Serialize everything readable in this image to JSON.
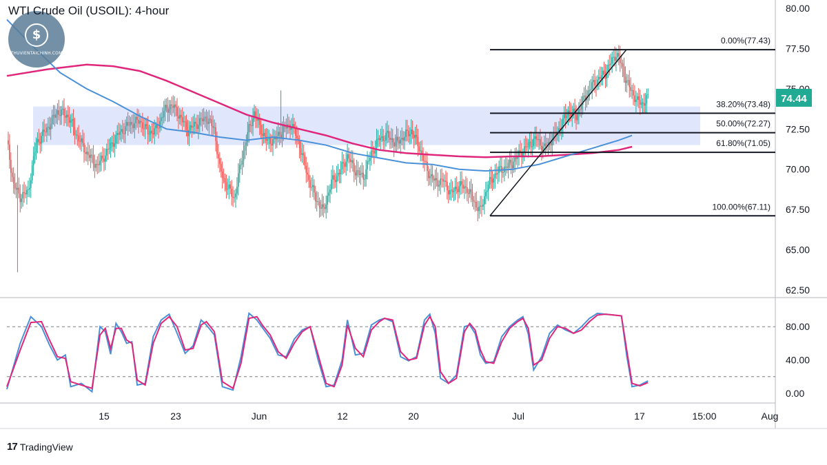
{
  "header": {
    "title": "WTI Crude Oil (USOIL): 4-hour"
  },
  "watermark": {
    "site": "THUVIENTAICHINH.COM",
    "symbol": "$"
  },
  "brand": {
    "mark": "17",
    "name": "TradingView"
  },
  "price_badge": {
    "value": "74.44",
    "color": "#22ab94"
  },
  "colors": {
    "ma_fast": "#4a90d9",
    "ma_slow": "#e0267a",
    "zone": "#dbe3fb",
    "up": "#26a69a",
    "down": "#ef5350",
    "fib": "#131722"
  },
  "chart_data": [
    {
      "type": "candlestick",
      "ylim": [
        62.5,
        80.0
      ],
      "y_ticks": [
        "62.50",
        "65.00",
        "67.50",
        "70.00",
        "72.50",
        "75.00",
        "77.50",
        "80.00"
      ],
      "x_ticks": [
        "15",
        "23",
        "Jun",
        "12",
        "20",
        "Jul",
        "17",
        "15:00",
        "Aug"
      ],
      "last_price": 74.44,
      "support_zone": [
        71.5,
        73.9
      ],
      "fibonacci": [
        {
          "label": "0.00%(77.43)",
          "level": 77.43
        },
        {
          "label": "38.20%(73.48)",
          "level": 73.48
        },
        {
          "label": "50.00%(72.27)",
          "level": 72.27
        },
        {
          "label": "61.80%(71.05)",
          "level": 71.05
        },
        {
          "label": "100.00%(67.11)",
          "level": 67.11
        }
      ],
      "trend_line": {
        "from": 67.11,
        "to": 77.43
      },
      "close_path": [
        [
          0,
          71.8
        ],
        [
          5,
          69.0
        ],
        [
          10,
          68.3
        ],
        [
          16,
          68.6
        ],
        [
          22,
          71.6
        ],
        [
          30,
          72.5
        ],
        [
          38,
          73.6
        ],
        [
          46,
          73.3
        ],
        [
          52,
          72.2
        ],
        [
          60,
          71.0
        ],
        [
          68,
          70.2
        ],
        [
          76,
          71.2
        ],
        [
          84,
          72.2
        ],
        [
          92,
          72.8
        ],
        [
          100,
          73.0
        ],
        [
          106,
          72.3
        ],
        [
          112,
          72.4
        ],
        [
          118,
          73.6
        ],
        [
          124,
          74.0
        ],
        [
          130,
          73.3
        ],
        [
          136,
          72.4
        ],
        [
          142,
          72.8
        ],
        [
          150,
          73.2
        ],
        [
          156,
          72.5
        ],
        [
          160,
          70.0
        ],
        [
          165,
          69.0
        ],
        [
          171,
          68.2
        ],
        [
          176,
          70.4
        ],
        [
          181,
          72.2
        ],
        [
          186,
          73.5
        ],
        [
          190,
          72.6
        ],
        [
          196,
          71.7
        ],
        [
          202,
          71.9
        ],
        [
          208,
          72.5
        ],
        [
          214,
          72.8
        ],
        [
          220,
          71.5
        ],
        [
          226,
          69.6
        ],
        [
          232,
          68.2
        ],
        [
          238,
          67.4
        ],
        [
          244,
          69.2
        ],
        [
          250,
          69.8
        ],
        [
          256,
          70.8
        ],
        [
          262,
          69.9
        ],
        [
          268,
          69.5
        ],
        [
          274,
          71.0
        ],
        [
          280,
          71.9
        ],
        [
          286,
          72.1
        ],
        [
          292,
          71.6
        ],
        [
          298,
          72.0
        ],
        [
          304,
          72.4
        ],
        [
          310,
          71.4
        ],
        [
          316,
          69.9
        ],
        [
          322,
          69.2
        ],
        [
          328,
          69.3
        ],
        [
          334,
          68.5
        ],
        [
          340,
          69.0
        ],
        [
          346,
          68.8
        ],
        [
          352,
          67.9
        ],
        [
          356,
          67.4
        ],
        [
          361,
          68.9
        ],
        [
          368,
          69.8
        ],
        [
          374,
          70.1
        ],
        [
          380,
          70.4
        ],
        [
          386,
          71.0
        ],
        [
          392,
          71.5
        ],
        [
          398,
          71.9
        ],
        [
          404,
          71.3
        ],
        [
          410,
          71.9
        ],
        [
          416,
          72.6
        ],
        [
          422,
          73.6
        ],
        [
          428,
          73.3
        ],
        [
          434,
          74.4
        ],
        [
          440,
          75.2
        ],
        [
          446,
          75.7
        ],
        [
          450,
          76.0
        ],
        [
          454,
          76.6
        ],
        [
          458,
          77.2
        ],
        [
          462,
          76.5
        ],
        [
          466,
          75.4
        ],
        [
          470,
          74.8
        ],
        [
          474,
          74.2
        ],
        [
          478,
          74.1
        ],
        [
          482,
          74.4
        ]
      ],
      "ma_fast": [
        [
          0,
          79.3
        ],
        [
          20,
          77.6
        ],
        [
          40,
          76.0
        ],
        [
          60,
          75.0
        ],
        [
          80,
          74.2
        ],
        [
          100,
          73.3
        ],
        [
          120,
          72.5
        ],
        [
          140,
          72.3
        ],
        [
          160,
          72.0
        ],
        [
          180,
          71.8
        ],
        [
          200,
          72.0
        ],
        [
          220,
          71.8
        ],
        [
          240,
          71.5
        ],
        [
          260,
          71.0
        ],
        [
          280,
          70.7
        ],
        [
          300,
          70.4
        ],
        [
          320,
          70.3
        ],
        [
          340,
          70.0
        ],
        [
          360,
          69.9
        ],
        [
          380,
          70.0
        ],
        [
          400,
          70.3
        ],
        [
          420,
          70.8
        ],
        [
          440,
          71.3
        ],
        [
          460,
          71.8
        ],
        [
          470,
          72.1
        ]
      ],
      "ma_slow": [
        [
          0,
          75.8
        ],
        [
          30,
          76.2
        ],
        [
          60,
          76.5
        ],
        [
          80,
          76.4
        ],
        [
          100,
          76.1
        ],
        [
          120,
          75.5
        ],
        [
          140,
          74.8
        ],
        [
          160,
          74.1
        ],
        [
          180,
          73.4
        ],
        [
          200,
          72.9
        ],
        [
          220,
          72.5
        ],
        [
          240,
          72.1
        ],
        [
          260,
          71.6
        ],
        [
          280,
          71.2
        ],
        [
          300,
          71.0
        ],
        [
          320,
          70.9
        ],
        [
          340,
          70.8
        ],
        [
          360,
          70.75
        ],
        [
          380,
          70.8
        ],
        [
          400,
          70.8
        ],
        [
          420,
          70.9
        ],
        [
          440,
          71.0
        ],
        [
          460,
          71.2
        ],
        [
          470,
          71.4
        ]
      ]
    },
    {
      "type": "line",
      "title": "",
      "ylim": [
        -6,
        110
      ],
      "y_ticks": [
        "0.00",
        "40.00",
        "80.00"
      ],
      "levels": [
        20,
        80
      ],
      "series": [
        {
          "values": [
            [
              0,
              5
            ],
            [
              10,
              60
            ],
            [
              18,
              92
            ],
            [
              26,
              80
            ],
            [
              32,
              58
            ],
            [
              38,
              40
            ],
            [
              44,
              46
            ],
            [
              48,
              8
            ],
            [
              56,
              12
            ],
            [
              64,
              2
            ],
            [
              70,
              80
            ],
            [
              74,
              74
            ],
            [
              78,
              47
            ],
            [
              82,
              84
            ],
            [
              86,
              74
            ],
            [
              90,
              60
            ],
            [
              94,
              62
            ],
            [
              98,
              10
            ],
            [
              104,
              12
            ],
            [
              110,
              68
            ],
            [
              116,
              88
            ],
            [
              122,
              95
            ],
            [
              128,
              72
            ],
            [
              134,
              48
            ],
            [
              140,
              57
            ],
            [
              146,
              88
            ],
            [
              150,
              82
            ],
            [
              156,
              70
            ],
            [
              162,
              8
            ],
            [
              170,
              4
            ],
            [
              176,
              44
            ],
            [
              182,
              96
            ],
            [
              188,
              88
            ],
            [
              192,
              79
            ],
            [
              198,
              66
            ],
            [
              204,
              46
            ],
            [
              210,
              44
            ],
            [
              216,
              65
            ],
            [
              222,
              76
            ],
            [
              228,
              80
            ],
            [
              234,
              40
            ],
            [
              240,
              8
            ],
            [
              246,
              10
            ],
            [
              252,
              40
            ],
            [
              256,
              88
            ],
            [
              262,
              46
            ],
            [
              268,
              48
            ],
            [
              274,
              82
            ],
            [
              280,
              88
            ],
            [
              284,
              90
            ],
            [
              290,
              86
            ],
            [
              296,
              44
            ],
            [
              302,
              39
            ],
            [
              308,
              44
            ],
            [
              314,
              88
            ],
            [
              318,
              95
            ],
            [
              322,
              72
            ],
            [
              326,
              18
            ],
            [
              332,
              12
            ],
            [
              338,
              22
            ],
            [
              344,
              80
            ],
            [
              348,
              82
            ],
            [
              352,
              72
            ],
            [
              356,
              46
            ],
            [
              360,
              36
            ],
            [
              366,
              38
            ],
            [
              372,
              68
            ],
            [
              378,
              80
            ],
            [
              384,
              88
            ],
            [
              388,
              92
            ],
            [
              392,
              71
            ],
            [
              396,
              28
            ],
            [
              402,
              44
            ],
            [
              408,
              72
            ],
            [
              414,
              82
            ],
            [
              420,
              76
            ],
            [
              426,
              72
            ],
            [
              432,
              80
            ],
            [
              438,
              90
            ],
            [
              444,
              96
            ],
            [
              450,
              95
            ],
            [
              456,
              94
            ],
            [
              462,
              93
            ],
            [
              466,
              45
            ],
            [
              470,
              8
            ],
            [
              476,
              10
            ],
            [
              482,
              15
            ]
          ]
        },
        {
          "values": [
            [
              0,
              8
            ],
            [
              10,
              52
            ],
            [
              18,
              85
            ],
            [
              26,
              86
            ],
            [
              32,
              64
            ],
            [
              38,
              44
            ],
            [
              44,
              42
            ],
            [
              48,
              14
            ],
            [
              56,
              10
            ],
            [
              64,
              6
            ],
            [
              70,
              70
            ],
            [
              74,
              78
            ],
            [
              78,
              54
            ],
            [
              82,
              78
            ],
            [
              86,
              78
            ],
            [
              90,
              64
            ],
            [
              94,
              60
            ],
            [
              98,
              16
            ],
            [
              104,
              10
            ],
            [
              110,
              60
            ],
            [
              116,
              84
            ],
            [
              122,
              92
            ],
            [
              128,
              80
            ],
            [
              134,
              52
            ],
            [
              140,
              54
            ],
            [
              146,
              82
            ],
            [
              150,
              86
            ],
            [
              156,
              74
            ],
            [
              162,
              14
            ],
            [
              170,
              6
            ],
            [
              176,
              36
            ],
            [
              182,
              90
            ],
            [
              188,
              92
            ],
            [
              192,
              82
            ],
            [
              198,
              70
            ],
            [
              204,
              50
            ],
            [
              210,
              42
            ],
            [
              216,
              60
            ],
            [
              222,
              74
            ],
            [
              228,
              80
            ],
            [
              234,
              46
            ],
            [
              240,
              12
            ],
            [
              246,
              8
            ],
            [
              252,
              34
            ],
            [
              256,
              82
            ],
            [
              262,
              54
            ],
            [
              268,
              44
            ],
            [
              274,
              76
            ],
            [
              280,
              86
            ],
            [
              284,
              90
            ],
            [
              290,
              88
            ],
            [
              296,
              50
            ],
            [
              302,
              40
            ],
            [
              308,
              42
            ],
            [
              314,
              82
            ],
            [
              318,
              92
            ],
            [
              322,
              80
            ],
            [
              326,
              26
            ],
            [
              332,
              12
            ],
            [
              338,
              18
            ],
            [
              344,
              74
            ],
            [
              348,
              84
            ],
            [
              352,
              76
            ],
            [
              356,
              52
            ],
            [
              360,
              38
            ],
            [
              366,
              36
            ],
            [
              372,
              62
            ],
            [
              378,
              78
            ],
            [
              384,
              86
            ],
            [
              388,
              90
            ],
            [
              392,
              78
            ],
            [
              396,
              34
            ],
            [
              402,
              40
            ],
            [
              408,
              66
            ],
            [
              414,
              80
            ],
            [
              420,
              78
            ],
            [
              426,
              72
            ],
            [
              432,
              76
            ],
            [
              438,
              86
            ],
            [
              444,
              94
            ],
            [
              450,
              95
            ],
            [
              456,
              94
            ],
            [
              462,
              93
            ],
            [
              466,
              52
            ],
            [
              470,
              12
            ],
            [
              476,
              9
            ],
            [
              482,
              13
            ]
          ]
        }
      ]
    }
  ]
}
